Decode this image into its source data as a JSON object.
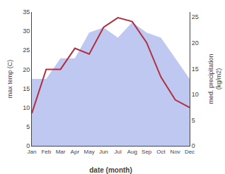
{
  "chart_data": {
    "type": "line",
    "categories": [
      "Jan",
      "Feb",
      "Mar",
      "Apr",
      "May",
      "Jun",
      "Jul",
      "Aug",
      "Sep",
      "Oct",
      "Nov",
      "Dec"
    ],
    "series": [
      {
        "type": "area",
        "color": "#bfc8f0",
        "axis": "y2",
        "values": [
          13.0,
          13.0,
          17.0,
          17.0,
          22.0,
          23.0,
          21.0,
          24.0,
          22.0,
          21.0,
          17.0,
          13.0
        ]
      },
      {
        "type": "line",
        "color": "#b03040",
        "values": [
          8.5,
          20.0,
          20.0,
          25.5,
          24.0,
          31.0,
          33.5,
          32.5,
          27.0,
          18.0,
          12.0,
          10.0
        ]
      }
    ],
    "x_label": "date (month)",
    "y_label": "max temp (C)",
    "y2_label": "med. precipitation\n(kg/m2)",
    "ylim": [
      0,
      35
    ],
    "yticks": [
      0,
      5,
      10,
      15,
      20,
      25,
      30,
      35
    ],
    "y2lim": [
      0,
      26
    ],
    "y2ticks": [
      0,
      5,
      10,
      15,
      20,
      25
    ],
    "grid": false
  }
}
